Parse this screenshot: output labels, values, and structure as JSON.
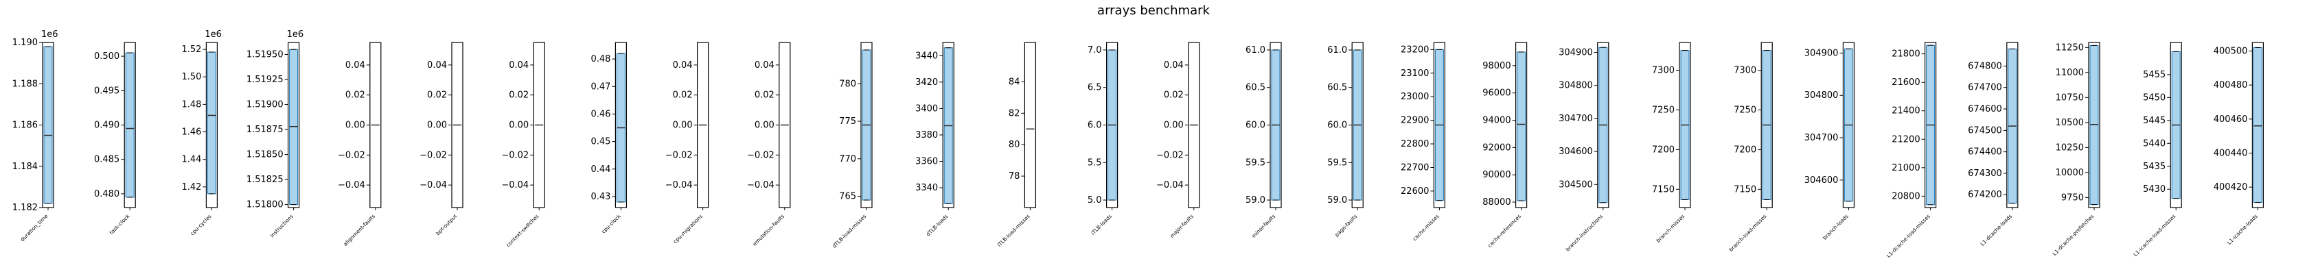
{
  "title": "arrays benchmark",
  "colors": {
    "fill": "#aad3ee",
    "median": "#2a2a2a",
    "frame": "#000000",
    "edge": "#1f77b4"
  },
  "chart_data": {
    "type": "box",
    "title": "arrays benchmark",
    "grid": false,
    "legend": "none",
    "panels": [
      {
        "label": "duration_time",
        "multiplier": "1e6",
        "ylim": [
          1.182,
          1.19
        ],
        "yticks": [
          1.182,
          1.184,
          1.186,
          1.188,
          1.19
        ],
        "tick_labels": [
          "1.182",
          "1.184",
          "1.186",
          "1.188",
          "1.190"
        ],
        "box": [
          1.1822,
          1.1898
        ],
        "median": 1.1855
      },
      {
        "label": "task-clock",
        "multiplier": "",
        "ylim": [
          0.478,
          0.502
        ],
        "yticks": [
          0.48,
          0.485,
          0.49,
          0.495,
          0.5
        ],
        "tick_labels": [
          "0.480",
          "0.485",
          "0.490",
          "0.495",
          "0.500"
        ],
        "box": [
          0.4795,
          0.5005
        ],
        "median": 0.4895
      },
      {
        "label": "cpu-cycles",
        "multiplier": "1e6",
        "ylim": [
          1.405,
          1.525
        ],
        "yticks": [
          1.42,
          1.44,
          1.46,
          1.48,
          1.5,
          1.52
        ],
        "tick_labels": [
          "1.42",
          "1.44",
          "1.46",
          "1.48",
          "1.50",
          "1.52"
        ],
        "box": [
          1.415,
          1.518
        ],
        "median": 1.472
      },
      {
        "label": "instructions",
        "multiplier": "1e6",
        "ylim": [
          1.51797,
          1.51962
        ],
        "yticks": [
          1.518,
          1.51825,
          1.5185,
          1.51875,
          1.519,
          1.51925,
          1.5195
        ],
        "tick_labels": [
          "1.51800",
          "1.51825",
          "1.51850",
          "1.51875",
          "1.51900",
          "1.51925",
          "1.51950"
        ],
        "box": [
          1.518,
          1.51955
        ],
        "median": 1.51878
      },
      {
        "label": "alignment-faults",
        "multiplier": "",
        "ylim": [
          -0.055,
          0.055
        ],
        "yticks": [
          -0.04,
          -0.02,
          0.0,
          0.02,
          0.04
        ],
        "tick_labels": [
          "−0.04",
          "−0.02",
          "0.00",
          "0.02",
          "0.04"
        ],
        "box": [
          0,
          0
        ],
        "median": 0
      },
      {
        "label": "bpf-output",
        "multiplier": "",
        "ylim": [
          -0.055,
          0.055
        ],
        "yticks": [
          -0.04,
          -0.02,
          0.0,
          0.02,
          0.04
        ],
        "tick_labels": [
          "−0.04",
          "−0.02",
          "0.00",
          "0.02",
          "0.04"
        ],
        "box": [
          0,
          0
        ],
        "median": 0
      },
      {
        "label": "context-switches",
        "multiplier": "",
        "ylim": [
          -0.055,
          0.055
        ],
        "yticks": [
          -0.04,
          -0.02,
          0.0,
          0.02,
          0.04
        ],
        "tick_labels": [
          "−0.04",
          "−0.02",
          "0.00",
          "0.02",
          "0.04"
        ],
        "box": [
          0,
          0
        ],
        "median": 0
      },
      {
        "label": "cpu-clock",
        "multiplier": "",
        "ylim": [
          0.426,
          0.486
        ],
        "yticks": [
          0.43,
          0.44,
          0.45,
          0.46,
          0.47,
          0.48
        ],
        "tick_labels": [
          "0.43",
          "0.44",
          "0.45",
          "0.46",
          "0.47",
          "0.48"
        ],
        "box": [
          0.428,
          0.482
        ],
        "median": 0.455
      },
      {
        "label": "cpu-migrations",
        "multiplier": "",
        "ylim": [
          -0.055,
          0.055
        ],
        "yticks": [
          -0.04,
          -0.02,
          0.0,
          0.02,
          0.04
        ],
        "tick_labels": [
          "−0.04",
          "−0.02",
          "0.00",
          "0.02",
          "0.04"
        ],
        "box": [
          0,
          0
        ],
        "median": 0
      },
      {
        "label": "emulation-faults",
        "multiplier": "",
        "ylim": [
          -0.055,
          0.055
        ],
        "yticks": [
          -0.04,
          -0.02,
          0.0,
          0.02,
          0.04
        ],
        "tick_labels": [
          "−0.04",
          "−0.02",
          "0.00",
          "0.02",
          "0.04"
        ],
        "box": [
          0,
          0
        ],
        "median": 0
      },
      {
        "label": "dTLB-load-misses",
        "multiplier": "",
        "ylim": [
          763.5,
          785.5
        ],
        "yticks": [
          765,
          770,
          775,
          780
        ],
        "tick_labels": [
          "765",
          "770",
          "775",
          "780"
        ],
        "box": [
          764.5,
          784.5
        ],
        "median": 774.5
      },
      {
        "label": "dTLB-loads",
        "multiplier": "",
        "ylim": [
          3325,
          3450
        ],
        "yticks": [
          3340,
          3360,
          3380,
          3400,
          3420,
          3440
        ],
        "tick_labels": [
          "3340",
          "3360",
          "3380",
          "3400",
          "3420",
          "3440"
        ],
        "box": [
          3328,
          3446
        ],
        "median": 3387
      },
      {
        "label": "iTLB-load-misses",
        "multiplier": "",
        "ylim": [
          76,
          86.5
        ],
        "yticks": [
          78,
          80,
          82,
          84
        ],
        "tick_labels": [
          "78",
          "80",
          "82",
          "84"
        ],
        "box": [
          81,
          81
        ],
        "median": 81
      },
      {
        "label": "iTLB-loads",
        "multiplier": "",
        "ylim": [
          4.9,
          7.1
        ],
        "yticks": [
          5.0,
          5.5,
          6.0,
          6.5,
          7.0
        ],
        "tick_labels": [
          "5.0",
          "5.5",
          "6.0",
          "6.5",
          "7.0"
        ],
        "box": [
          5.0,
          7.0
        ],
        "median": 6.0
      },
      {
        "label": "major-faults",
        "multiplier": "",
        "ylim": [
          -0.055,
          0.055
        ],
        "yticks": [
          -0.04,
          -0.02,
          0.0,
          0.02,
          0.04
        ],
        "tick_labels": [
          "−0.04",
          "−0.02",
          "0.00",
          "0.02",
          "0.04"
        ],
        "box": [
          0,
          0
        ],
        "median": 0
      },
      {
        "label": "minor-faults",
        "multiplier": "",
        "ylim": [
          58.9,
          61.1
        ],
        "yticks": [
          59.0,
          59.5,
          60.0,
          60.5,
          61.0
        ],
        "tick_labels": [
          "59.0",
          "59.5",
          "60.0",
          "60.5",
          "61.0"
        ],
        "box": [
          59.0,
          61.0
        ],
        "median": 60.0
      },
      {
        "label": "page-faults",
        "multiplier": "",
        "ylim": [
          58.9,
          61.1
        ],
        "yticks": [
          59.0,
          59.5,
          60.0,
          60.5,
          61.0
        ],
        "tick_labels": [
          "59.0",
          "59.5",
          "60.0",
          "60.5",
          "61.0"
        ],
        "box": [
          59.0,
          61.0
        ],
        "median": 60.0
      },
      {
        "label": "cache-misses",
        "multiplier": "",
        "ylim": [
          22530,
          23230
        ],
        "yticks": [
          22600,
          22700,
          22800,
          22900,
          23000,
          23100,
          23200
        ],
        "tick_labels": [
          "22600",
          "22700",
          "22800",
          "22900",
          "23000",
          "23100",
          "23200"
        ],
        "box": [
          22560,
          23200
        ],
        "median": 22880
      },
      {
        "label": "cache-references",
        "multiplier": "",
        "ylim": [
          87600,
          99700
        ],
        "yticks": [
          88000,
          90000,
          92000,
          94000,
          96000,
          98000
        ],
        "tick_labels": [
          "88000",
          "90000",
          "92000",
          "94000",
          "96000",
          "98000"
        ],
        "box": [
          88100,
          99000
        ],
        "median": 93700
      },
      {
        "label": "branch-instructions",
        "multiplier": "",
        "ylim": [
          304430,
          304930
        ],
        "yticks": [
          304500,
          304600,
          304700,
          304800,
          304900
        ],
        "tick_labels": [
          "304500",
          "304600",
          "304700",
          "304800",
          "304900"
        ],
        "box": [
          304445,
          304915
        ],
        "median": 304680
      },
      {
        "label": "branch-misses",
        "multiplier": "",
        "ylim": [
          7127,
          7335
        ],
        "yticks": [
          7150,
          7200,
          7250,
          7300
        ],
        "tick_labels": [
          "7150",
          "7200",
          "7250",
          "7300"
        ],
        "box": [
          7137,
          7325
        ],
        "median": 7231
      },
      {
        "label": "branch-load-misses",
        "multiplier": "",
        "ylim": [
          7127,
          7335
        ],
        "yticks": [
          7150,
          7200,
          7250,
          7300
        ],
        "tick_labels": [
          "7150",
          "7200",
          "7250",
          "7300"
        ],
        "box": [
          7137,
          7325
        ],
        "median": 7231
      },
      {
        "label": "branch-loads",
        "multiplier": "",
        "ylim": [
          304535,
          304925
        ],
        "yticks": [
          304600,
          304700,
          304800,
          304900
        ],
        "tick_labels": [
          "304600",
          "304700",
          "304800",
          "304900"
        ],
        "box": [
          304550,
          304910
        ],
        "median": 304730
      },
      {
        "label": "L1-dcache-load-misses",
        "multiplier": "",
        "ylim": [
          20720,
          21880
        ],
        "yticks": [
          20800,
          21000,
          21200,
          21400,
          21600,
          21800
        ],
        "tick_labels": [
          "20800",
          "21000",
          "21200",
          "21400",
          "21600",
          "21800"
        ],
        "box": [
          20740,
          21860
        ],
        "median": 21300
      },
      {
        "label": "L1-dcache-loads",
        "multiplier": "",
        "ylim": [
          674140,
          674910
        ],
        "yticks": [
          674200,
          674300,
          674400,
          674500,
          674600,
          674700,
          674800
        ],
        "tick_labels": [
          "674200",
          "674300",
          "674400",
          "674500",
          "674600",
          "674700",
          "674800"
        ],
        "box": [
          674160,
          674880
        ],
        "median": 674520
      },
      {
        "label": "L1-dcache-prefetches",
        "multiplier": "",
        "ylim": [
          9650,
          11300
        ],
        "yticks": [
          9750,
          10000,
          10250,
          10500,
          10750,
          11000,
          11250
        ],
        "tick_labels": [
          "9750",
          "10000",
          "10250",
          "10500",
          "10750",
          "11000",
          "11250"
        ],
        "box": [
          9680,
          11270
        ],
        "median": 10480
      },
      {
        "label": "L1-icache-load-misses",
        "multiplier": "",
        "ylim": [
          5426,
          5462
        ],
        "yticks": [
          5430,
          5435,
          5440,
          5445,
          5450,
          5455
        ],
        "tick_labels": [
          "5430",
          "5435",
          "5440",
          "5445",
          "5450",
          "5455"
        ],
        "box": [
          5428,
          5460
        ],
        "median": 5444
      },
      {
        "label": "L1-icache-loads",
        "multiplier": "",
        "ylim": [
          400408,
          400505
        ],
        "yticks": [
          400420,
          400440,
          400460,
          400480,
          400500
        ],
        "tick_labels": [
          "400420",
          "400440",
          "400460",
          "400480",
          "400500"
        ],
        "box": [
          400411,
          400502
        ],
        "median": 400456
      }
    ]
  }
}
